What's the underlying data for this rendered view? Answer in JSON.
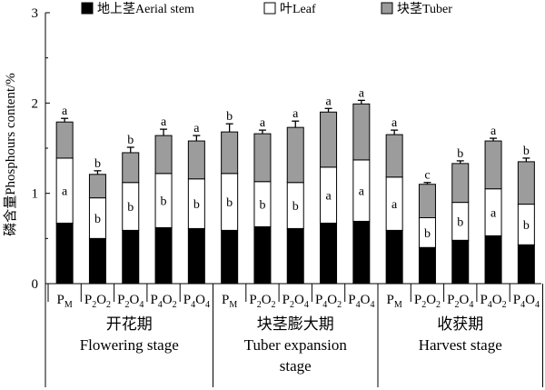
{
  "chart_data": {
    "type": "bar",
    "stacked": true,
    "ylabel": "磷含量Phosphours content/%",
    "ylim": [
      0,
      3
    ],
    "yticks": [
      "0",
      "1",
      "2",
      "3"
    ],
    "grid": false,
    "legend_position": "top",
    "legend": [
      {
        "label": "地上茎Aerial stem",
        "color": "#000000"
      },
      {
        "label": "叶Leaf",
        "color": "#ffffff"
      },
      {
        "label": "块茎Tuber",
        "color": "#9c9c9c"
      }
    ],
    "categories": [
      {
        "main": "P",
        "sub": "M"
      },
      {
        "main": "P",
        "sub": "2",
        "main2": "O",
        "sub2": "2"
      },
      {
        "main": "P",
        "sub": "2",
        "main2": "O",
        "sub2": "4"
      },
      {
        "main": "P",
        "sub": "4",
        "main2": "O",
        "sub2": "2"
      },
      {
        "main": "P",
        "sub": "4",
        "main2": "O",
        "sub2": "4"
      },
      {
        "main": "P",
        "sub": "M"
      },
      {
        "main": "P",
        "sub": "2",
        "main2": "O",
        "sub2": "2"
      },
      {
        "main": "P",
        "sub": "2",
        "main2": "O",
        "sub2": "4"
      },
      {
        "main": "P",
        "sub": "4",
        "main2": "O",
        "sub2": "2"
      },
      {
        "main": "P",
        "sub": "4",
        "main2": "O",
        "sub2": "4"
      },
      {
        "main": "P",
        "sub": "M"
      },
      {
        "main": "P",
        "sub": "2",
        "main2": "O",
        "sub2": "2"
      },
      {
        "main": "P",
        "sub": "2",
        "main2": "O",
        "sub2": "4"
      },
      {
        "main": "P",
        "sub": "4",
        "main2": "O",
        "sub2": "2"
      },
      {
        "main": "P",
        "sub": "4",
        "main2": "O",
        "sub2": "4"
      }
    ],
    "groups": [
      {
        "lines": [
          "开花期",
          "Flowering stage"
        ],
        "span": [
          0,
          4
        ]
      },
      {
        "lines": [
          "块茎膨大期",
          "Tuber expansion",
          "stage"
        ],
        "span": [
          5,
          9
        ]
      },
      {
        "lines": [
          "收获期",
          "Harvest stage"
        ],
        "span": [
          10,
          14
        ]
      }
    ],
    "series": [
      {
        "name": "地上茎Aerial stem",
        "values": [
          0.67,
          0.5,
          0.59,
          0.62,
          0.61,
          0.59,
          0.63,
          0.61,
          0.67,
          0.69,
          0.59,
          0.4,
          0.48,
          0.53,
          0.43
        ],
        "errors": [
          0.05,
          0.07,
          0.05,
          0.04,
          0.05,
          0.05,
          0.06,
          0.05,
          0.06,
          0.04,
          0.05,
          0.07,
          0.05,
          0.06,
          0.04
        ],
        "labels": [
          "",
          "",
          "",
          "",
          "",
          "",
          "",
          "",
          "",
          "",
          "",
          "",
          "",
          "",
          ""
        ]
      },
      {
        "name": "叶Leaf",
        "values": [
          0.72,
          0.45,
          0.53,
          0.6,
          0.55,
          0.63,
          0.5,
          0.51,
          0.62,
          0.68,
          0.59,
          0.33,
          0.42,
          0.52,
          0.45
        ],
        "errors": [
          0.03,
          0.03,
          0.03,
          0.03,
          0.03,
          0.03,
          0.03,
          0.03,
          0.03,
          0.03,
          0.03,
          0.03,
          0.03,
          0.03,
          0.03
        ],
        "labels": [
          "a",
          "b",
          "b",
          "b",
          "b",
          "b",
          "b",
          "b",
          "a",
          "a",
          "a",
          "b",
          "b",
          "a",
          "b"
        ]
      },
      {
        "name": "块茎Tuber",
        "values": [
          0.4,
          0.26,
          0.33,
          0.42,
          0.42,
          0.46,
          0.53,
          0.61,
          0.61,
          0.62,
          0.47,
          0.37,
          0.43,
          0.53,
          0.47
        ],
        "errors": [
          0.04,
          0.04,
          0.06,
          0.07,
          0.06,
          0.09,
          0.04,
          0.07,
          0.04,
          0.04,
          0.05,
          0.02,
          0.03,
          0.03,
          0.04
        ],
        "labels": [
          "a",
          "b",
          "b",
          "a",
          "a",
          "b",
          "a",
          "a",
          "a",
          "a",
          "a",
          "c",
          "b",
          "a",
          "b"
        ]
      }
    ]
  }
}
